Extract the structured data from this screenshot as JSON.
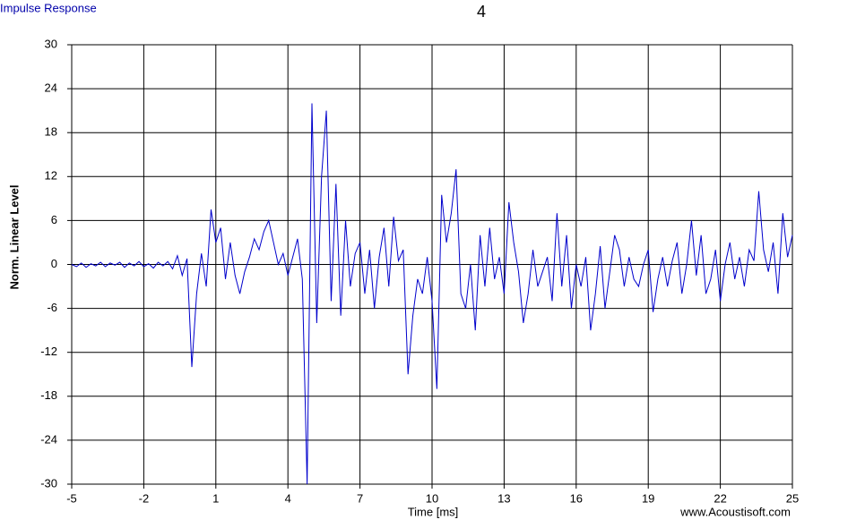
{
  "chart_data": {
    "type": "line",
    "title": "4",
    "corner_label": "Impulse Response",
    "watermark": "www.Acoustisoft.com",
    "xlabel": "Time [ms]",
    "ylabel": "Norm. Linear Level",
    "xlim": [
      -5,
      25
    ],
    "ylim": [
      -30,
      30
    ],
    "xticks": [
      -5,
      -2,
      1,
      4,
      7,
      10,
      13,
      16,
      19,
      22,
      25
    ],
    "yticks": [
      -30,
      -24,
      -18,
      -12,
      -6,
      0,
      6,
      12,
      18,
      24,
      30
    ],
    "grid": true,
    "x": [
      -5,
      -4.8,
      -4.6,
      -4.4,
      -4.2,
      -4,
      -3.8,
      -3.6,
      -3.4,
      -3.2,
      -3,
      -2.8,
      -2.6,
      -2.4,
      -2.2,
      -2,
      -1.8,
      -1.6,
      -1.4,
      -1.2,
      -1,
      -0.8,
      -0.6,
      -0.4,
      -0.2,
      0,
      0.2,
      0.4,
      0.6,
      0.8,
      1,
      1.2,
      1.4,
      1.6,
      1.8,
      2,
      2.2,
      2.4,
      2.6,
      2.8,
      3,
      3.2,
      3.4,
      3.6,
      3.8,
      4,
      4.2,
      4.4,
      4.6,
      4.8,
      5,
      5.2,
      5.4,
      5.6,
      5.8,
      6,
      6.2,
      6.4,
      6.6,
      6.8,
      7,
      7.2,
      7.4,
      7.6,
      7.8,
      8,
      8.2,
      8.4,
      8.6,
      8.8,
      9,
      9.2,
      9.4,
      9.6,
      9.8,
      10,
      10.2,
      10.4,
      10.6,
      10.8,
      11,
      11.2,
      11.4,
      11.6,
      11.8,
      12,
      12.2,
      12.4,
      12.6,
      12.8,
      13,
      13.2,
      13.4,
      13.6,
      13.8,
      14,
      14.2,
      14.4,
      14.6,
      14.8,
      15,
      15.2,
      15.4,
      15.6,
      15.8,
      16,
      16.2,
      16.4,
      16.6,
      16.8,
      17,
      17.2,
      17.4,
      17.6,
      17.8,
      18,
      18.2,
      18.4,
      18.6,
      18.8,
      19,
      19.2,
      19.4,
      19.6,
      19.8,
      20,
      20.2,
      20.4,
      20.6,
      20.8,
      21,
      21.2,
      21.4,
      21.6,
      21.8,
      22,
      22.2,
      22.4,
      22.6,
      22.8,
      23,
      23.2,
      23.4,
      23.6,
      23.8,
      24,
      24.2,
      24.4,
      24.6,
      24.8,
      25
    ],
    "series": [
      {
        "color": "#0000cc",
        "values": [
          0,
          -0.3,
          0.2,
          -0.4,
          0.1,
          -0.2,
          0.3,
          -0.3,
          0.2,
          -0.1,
          0.3,
          -0.4,
          0.2,
          -0.2,
          0.4,
          -0.3,
          0.1,
          -0.5,
          0.3,
          -0.2,
          0.4,
          -0.6,
          1.2,
          -1.5,
          0.8,
          -14,
          -4,
          1.5,
          -3,
          7.5,
          3,
          5,
          -2,
          3,
          -1.5,
          -4,
          -1,
          1,
          3.5,
          2,
          4.5,
          6,
          3,
          0,
          1.5,
          -1.5,
          1,
          3.5,
          -2,
          -30,
          22,
          -8,
          12,
          21,
          -5,
          11,
          -7,
          6,
          -3,
          1.5,
          3,
          -4,
          2,
          -6,
          1,
          5,
          -3,
          6.5,
          0.5,
          2,
          -15,
          -7,
          -2,
          -4,
          1,
          -5,
          -17,
          9.5,
          3,
          7,
          13,
          -4,
          -6,
          0,
          -9,
          4,
          -3,
          5,
          -2,
          1,
          -4,
          8.5,
          3,
          -1,
          -8,
          -4,
          2,
          -3,
          -1,
          1,
          -5,
          7,
          -3,
          4,
          -6,
          0,
          -3,
          1,
          -9,
          -4,
          2.5,
          -6,
          -1,
          4,
          2,
          -3,
          1,
          -2,
          -3,
          0,
          2,
          -6.5,
          -2,
          1,
          -3,
          0.5,
          3,
          -4,
          0,
          6,
          -1.5,
          4,
          -4,
          -2,
          2,
          -5,
          0,
          3,
          -2,
          1,
          -3,
          2,
          0.5,
          10,
          2,
          -1,
          3,
          -4,
          7,
          1,
          4
        ]
      }
    ]
  }
}
